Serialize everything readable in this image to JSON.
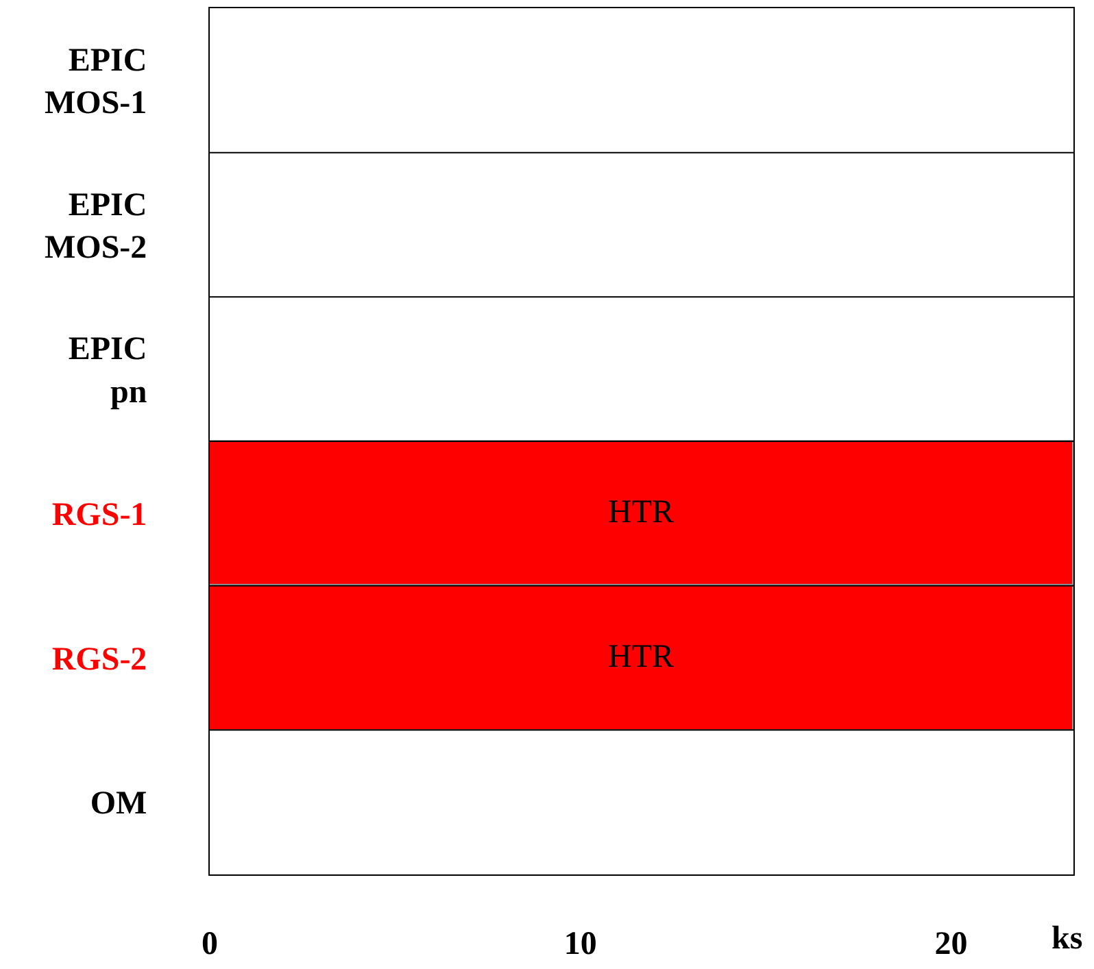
{
  "chart_data": {
    "type": "bar",
    "orientation": "horizontal",
    "xlabel": "ks",
    "categories": [
      "EPIC\nMOS-1",
      "EPIC\nMOS-2",
      "EPIC\npn",
      "RGS-1",
      "RGS-2",
      "OM"
    ],
    "base": [
      null,
      null,
      null,
      0,
      0,
      null
    ],
    "values": [
      null,
      null,
      null,
      23.3,
      23.3,
      null
    ],
    "colors": [
      null,
      null,
      null,
      "#ff0000",
      "#ff0000",
      null
    ],
    "value_labels": [
      null,
      null,
      null,
      "HTR",
      "HTR",
      null
    ],
    "xlim": [
      0,
      23.3
    ],
    "xticks": [
      0,
      10,
      20
    ],
    "grid": "y",
    "legend": false
  }
}
